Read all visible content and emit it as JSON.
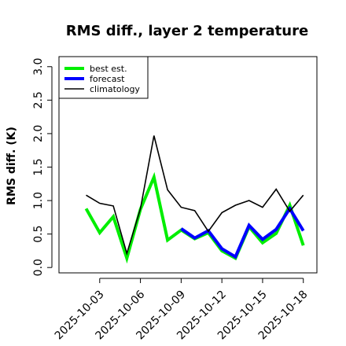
{
  "chart_data": {
    "type": "line",
    "title": "RMS diff., layer 2 temperature",
    "xlabel": "",
    "ylabel": "RMS diff. (K)",
    "ylim": [
      -0.08,
      3.15
    ],
    "xlim": [
      0,
      19
    ],
    "yticks": [
      "0.0",
      "0.5",
      "1.0",
      "1.5",
      "2.0",
      "2.5",
      "3.0"
    ],
    "x_ticks": [
      {
        "day": 3,
        "label": "2025-10-03",
        "color": "#000000"
      },
      {
        "day": 6,
        "label": "2025-10-06",
        "color": "#000000"
      },
      {
        "day": 9,
        "label": "2025-10-09",
        "color": "#228b22"
      },
      {
        "day": 12,
        "label": "2025-10-12",
        "color": "#000000"
      },
      {
        "day": 15,
        "label": "2025-10-15",
        "color": "#000000"
      },
      {
        "day": 18,
        "label": "2025-10-18",
        "color": "#000000"
      }
    ],
    "legend_position": "top-left",
    "grid": false,
    "series": [
      {
        "name": "best est.",
        "color": "#00ee00",
        "days": [
          2,
          3,
          4,
          5,
          6,
          7,
          8,
          9,
          10,
          11,
          12,
          13,
          14,
          15,
          16,
          17,
          18
        ],
        "values": [
          0.88,
          0.52,
          0.76,
          0.14,
          0.87,
          1.35,
          0.41,
          0.56,
          0.43,
          0.52,
          0.25,
          0.14,
          0.61,
          0.37,
          0.51,
          0.93,
          0.33
        ]
      },
      {
        "name": "forecast",
        "color": "#0000ff",
        "days": [
          9,
          10,
          11,
          12,
          13,
          14,
          15,
          16,
          17,
          18
        ],
        "values": [
          0.58,
          0.44,
          0.55,
          0.28,
          0.16,
          0.63,
          0.42,
          0.57,
          0.88,
          0.55
        ]
      },
      {
        "name": "climatology",
        "color": "#000000",
        "days": [
          2,
          3,
          4,
          5,
          6,
          7,
          8,
          9,
          10,
          11,
          12,
          13,
          14,
          15,
          16,
          17,
          18
        ],
        "values": [
          1.08,
          0.96,
          0.92,
          0.21,
          0.88,
          1.97,
          1.16,
          0.9,
          0.85,
          0.54,
          0.82,
          0.93,
          1.0,
          0.9,
          1.17,
          0.84,
          1.08
        ]
      }
    ]
  }
}
